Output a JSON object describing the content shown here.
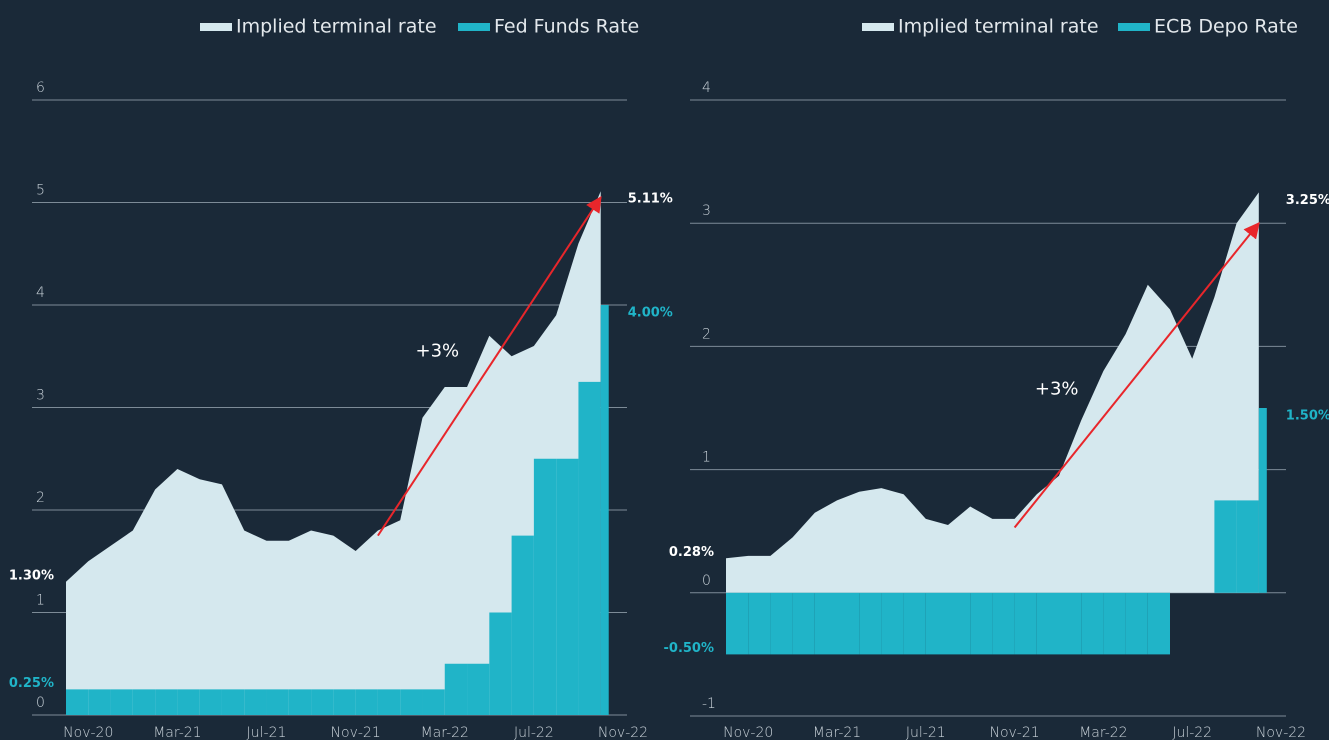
{
  "chart_data": [
    {
      "type": "area",
      "x": [
        "2020-10",
        "2020-11",
        "2020-12",
        "2021-01",
        "2021-02",
        "2021-03",
        "2021-04",
        "2021-05",
        "2021-06",
        "2021-07",
        "2021-08",
        "2021-09",
        "2021-10",
        "2021-11",
        "2021-12",
        "2022-01",
        "2022-02",
        "2022-03",
        "2022-04",
        "2022-05",
        "2022-06",
        "2022-07",
        "2022-08",
        "2022-09",
        "2022-10"
      ],
      "xlim": [
        "2020-10",
        "2022-11"
      ],
      "xticks": [
        {
          "value": "2020-11",
          "label": "Nov-20"
        },
        {
          "value": "2021-03",
          "label": "Mar-21"
        },
        {
          "value": "2021-07",
          "label": "Jul-21"
        },
        {
          "value": "2021-11",
          "label": "Nov-21"
        },
        {
          "value": "2022-03",
          "label": "Mar-22"
        },
        {
          "value": "2022-07",
          "label": "Jul-22"
        },
        {
          "value": "2022-11",
          "label": "Nov-22"
        }
      ],
      "ylim": [
        0,
        6
      ],
      "yticks": [
        0,
        1,
        2,
        3,
        4,
        5,
        6
      ],
      "grid": true,
      "series": [
        {
          "name": "Implied terminal rate",
          "color": "#d5e8ee",
          "style": "area",
          "values": [
            1.3,
            1.5,
            1.65,
            1.8,
            2.2,
            2.4,
            2.3,
            2.25,
            1.8,
            1.7,
            1.7,
            1.8,
            1.75,
            1.6,
            1.8,
            1.9,
            2.9,
            3.2,
            3.2,
            3.7,
            3.5,
            3.6,
            3.9,
            4.6,
            5.11
          ],
          "value_labels": [
            "1.30%",
            null,
            null,
            null,
            null,
            null,
            null,
            null,
            null,
            null,
            null,
            null,
            null,
            null,
            null,
            null,
            null,
            null,
            null,
            null,
            null,
            null,
            null,
            null,
            "5.11%"
          ]
        },
        {
          "name": "Fed Funds Rate",
          "color": "#20b4c8",
          "style": "step",
          "values": [
            0.25,
            0.25,
            0.25,
            0.25,
            0.25,
            0.25,
            0.25,
            0.25,
            0.25,
            0.25,
            0.25,
            0.25,
            0.25,
            0.25,
            0.25,
            0.25,
            0.25,
            0.5,
            0.5,
            1.0,
            1.75,
            2.5,
            2.5,
            3.25,
            4.0
          ],
          "value_labels": [
            "0.25%",
            null,
            null,
            null,
            null,
            null,
            null,
            null,
            null,
            null,
            null,
            null,
            null,
            null,
            null,
            null,
            null,
            null,
            null,
            null,
            null,
            null,
            null,
            null,
            "4.00%"
          ]
        }
      ],
      "annotation": {
        "text": "+3%",
        "x": [
          "2021-12",
          "2022-10"
        ],
        "y": [
          1.75,
          5.05
        ],
        "color": "#e8262b"
      }
    },
    {
      "type": "area",
      "x": [
        "2020-10",
        "2020-11",
        "2020-12",
        "2021-01",
        "2021-02",
        "2021-03",
        "2021-04",
        "2021-05",
        "2021-06",
        "2021-07",
        "2021-08",
        "2021-09",
        "2021-10",
        "2021-11",
        "2021-12",
        "2022-01",
        "2022-02",
        "2022-03",
        "2022-04",
        "2022-05",
        "2022-06",
        "2022-07",
        "2022-08",
        "2022-09",
        "2022-10"
      ],
      "xlim": [
        "2020-10",
        "2022-11"
      ],
      "xticks": [
        {
          "value": "2020-11",
          "label": "Nov-20"
        },
        {
          "value": "2021-03",
          "label": "Mar-21"
        },
        {
          "value": "2021-07",
          "label": "Jul-21"
        },
        {
          "value": "2021-11",
          "label": "Nov-21"
        },
        {
          "value": "2022-03",
          "label": "Mar-22"
        },
        {
          "value": "2022-07",
          "label": "Jul-22"
        },
        {
          "value": "2022-11",
          "label": "Nov-22"
        }
      ],
      "ylim": [
        -1,
        4
      ],
      "yticks": [
        -1,
        0,
        1,
        2,
        3,
        4
      ],
      "grid": true,
      "series": [
        {
          "name": "Implied terminal rate",
          "color": "#d5e8ee",
          "style": "area",
          "values": [
            0.28,
            0.3,
            0.3,
            0.45,
            0.65,
            0.75,
            0.82,
            0.85,
            0.8,
            0.6,
            0.55,
            0.7,
            0.6,
            0.6,
            0.8,
            0.95,
            1.4,
            1.8,
            2.1,
            2.5,
            2.3,
            1.9,
            2.4,
            3.0,
            3.25
          ],
          "value_labels": [
            "0.28%",
            null,
            null,
            null,
            null,
            null,
            null,
            null,
            null,
            null,
            null,
            null,
            null,
            null,
            null,
            null,
            null,
            null,
            null,
            null,
            null,
            null,
            null,
            null,
            "3.25%"
          ]
        },
        {
          "name": "ECB Depo Rate",
          "color": "#20b4c8",
          "style": "step",
          "values": [
            -0.5,
            -0.5,
            -0.5,
            -0.5,
            -0.5,
            -0.5,
            -0.5,
            -0.5,
            -0.5,
            -0.5,
            -0.5,
            -0.5,
            -0.5,
            -0.5,
            -0.5,
            -0.5,
            -0.5,
            -0.5,
            -0.5,
            -0.5,
            0,
            0,
            0.75,
            0.75,
            1.5
          ],
          "value_labels": [
            "-0.50%",
            null,
            null,
            null,
            null,
            null,
            null,
            null,
            null,
            null,
            null,
            null,
            null,
            null,
            null,
            null,
            null,
            null,
            null,
            null,
            null,
            null,
            null,
            null,
            "1.50%"
          ]
        }
      ],
      "annotation": {
        "text": "+3%",
        "x": [
          "2021-11",
          "2022-10"
        ],
        "y": [
          0.53,
          3.0
        ],
        "color": "#e8262b"
      }
    }
  ]
}
